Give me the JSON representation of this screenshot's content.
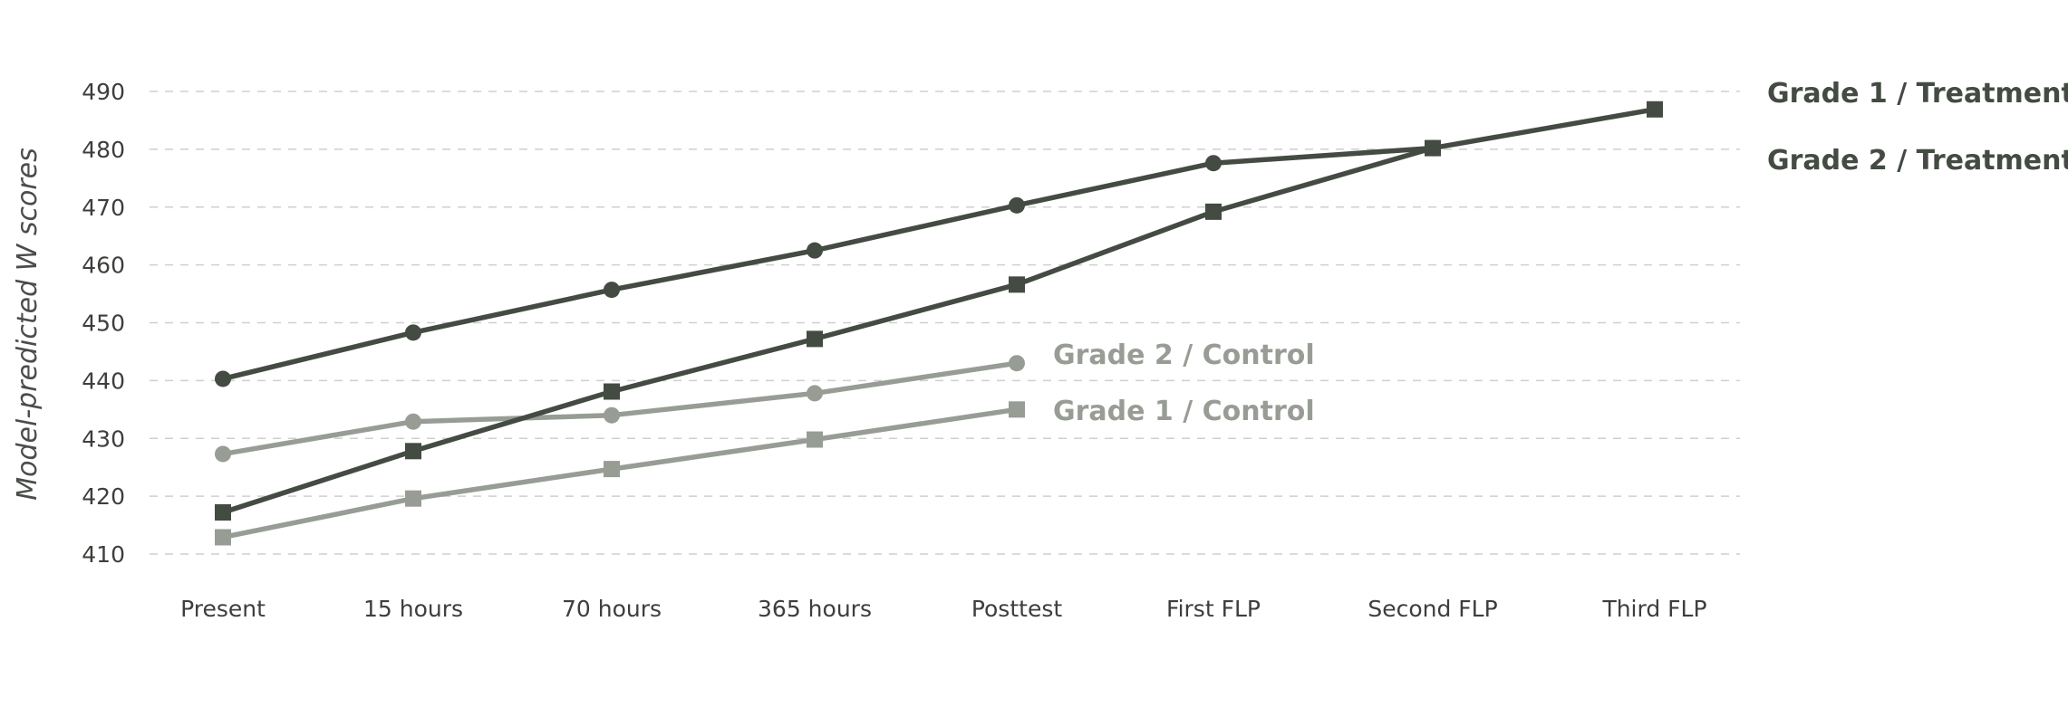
{
  "chart_data": {
    "type": "line",
    "ylabel": "Model-predicted W scores",
    "xlabel": "",
    "categories": [
      "Present",
      "15 hours",
      "70 hours",
      "365 hours",
      "Posttest",
      "First FLP",
      "Second FLP",
      "Third FLP"
    ],
    "ylim": [
      405,
      492
    ],
    "yticks": [
      410,
      420,
      430,
      440,
      450,
      460,
      470,
      480,
      490
    ],
    "grid": "horizontal-dashed",
    "series": [
      {
        "name": "Grade 1 / Treatment",
        "marker": "square",
        "color": "#434b42",
        "values": [
          417.2,
          427.8,
          438.1,
          447.2,
          456.6,
          469.2,
          480.2,
          486.9
        ]
      },
      {
        "name": "Grade 2 / Treatment",
        "marker": "circle",
        "color": "#434b42",
        "values": [
          440.3,
          448.3,
          455.7,
          462.5,
          470.3,
          477.6,
          480.2,
          null
        ]
      },
      {
        "name": "Grade 2 / Control",
        "marker": "circle",
        "color": "#979d95",
        "values": [
          427.3,
          432.9,
          434.0,
          437.8,
          443.0,
          null,
          null,
          null
        ]
      },
      {
        "name": "Grade 1 / Control",
        "marker": "square",
        "color": "#979d95",
        "values": [
          412.9,
          419.6,
          424.7,
          429.8,
          435.0,
          null,
          null,
          null
        ]
      }
    ]
  }
}
